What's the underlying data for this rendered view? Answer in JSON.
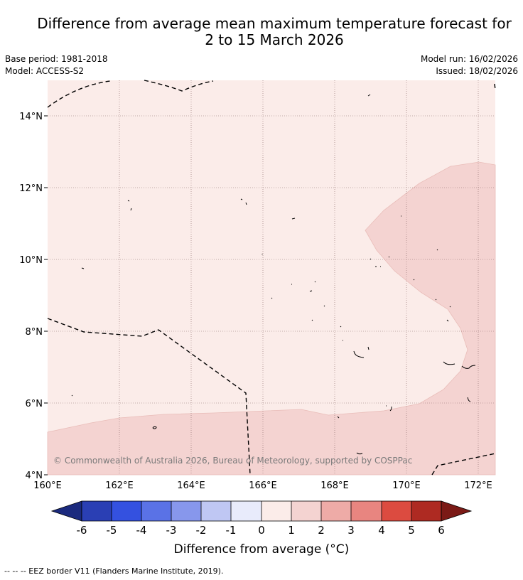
{
  "title_line1": "Difference from average mean maximum temperature forecast for",
  "title_line2": "2 to 15 March 2026",
  "base_period": "Base period: 1981-2018",
  "model": "Model: ACCESS-S2",
  "model_run": "Model run: 16/02/2026",
  "issued": "Issued: 18/02/2026",
  "copyright": "© Commonwealth of Australia 2026, Bureau of Meteorology, supported by COSPPac",
  "map": {
    "lon_range": [
      160,
      172.5
    ],
    "lat_range": [
      4,
      15
    ],
    "lat_ticks": [
      "14°N",
      "12°N",
      "10°N",
      "8°N",
      "6°N",
      "4°N"
    ],
    "lon_ticks": [
      "160°E",
      "162°E",
      "164°E",
      "166°E",
      "168°E",
      "170°E",
      "172°E"
    ],
    "background_category": "0 to 1",
    "warm_regions_category": "1 to 2"
  },
  "colorbar": {
    "title": "Difference from average (°C)",
    "tick_labels": [
      "-6",
      "-5",
      "-4",
      "-3",
      "-2",
      "-1",
      "0",
      "1",
      "2",
      "3",
      "4",
      "5",
      "6"
    ],
    "colors": [
      "#1b2a7e",
      "#2a3fb4",
      "#3451e0",
      "#5a72e6",
      "#8797ec",
      "#bfc7f3",
      "#e8ebfb",
      "#fbece9",
      "#f4d3d1",
      "#eeaba7",
      "#e88580",
      "#dc4b40",
      "#ae2a22",
      "#7b1a16"
    ]
  },
  "footnote": "-- -- -- EEZ border V11 (Flanders Marine Institute, 2019)."
}
